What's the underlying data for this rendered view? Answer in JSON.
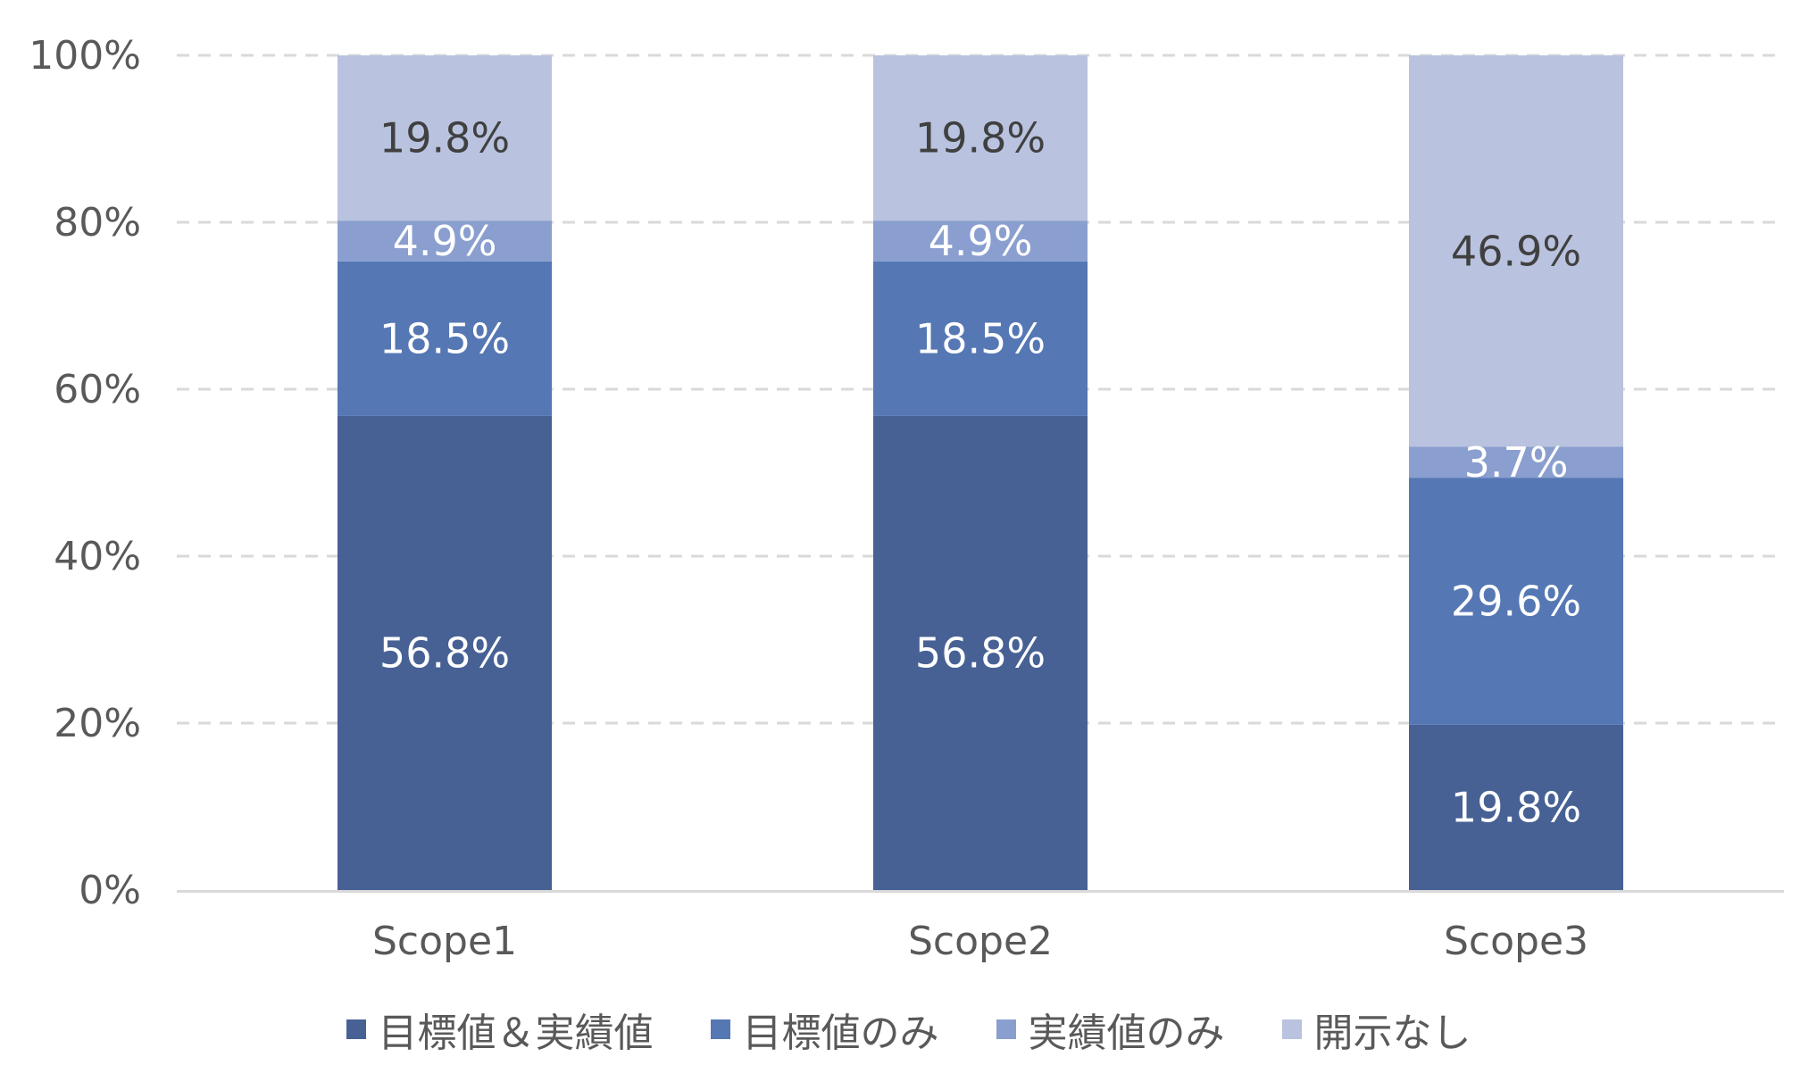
{
  "chart_data": {
    "type": "bar",
    "stacked": true,
    "percent_stacked": true,
    "categories": [
      "Scope1",
      "Scope2",
      "Scope3"
    ],
    "series": [
      {
        "name": "目標値＆実績値",
        "values": [
          56.8,
          56.8,
          19.8
        ],
        "labels": [
          "56.8%",
          "56.8%",
          "19.8%"
        ],
        "color": "#476195",
        "label_color": "#ffffff"
      },
      {
        "name": "目標値のみ",
        "values": [
          18.5,
          18.5,
          29.6
        ],
        "labels": [
          "18.5%",
          "18.5%",
          "29.6%"
        ],
        "color": "#5577b4",
        "label_color": "#ffffff"
      },
      {
        "name": "実績値のみ",
        "values": [
          4.9,
          4.9,
          3.7
        ],
        "labels": [
          "4.9%",
          "4.9%",
          "3.7%"
        ],
        "color": "#8a9fcf",
        "label_color": "#ffffff"
      },
      {
        "name": "開示なし",
        "values": [
          19.8,
          19.8,
          46.9
        ],
        "labels": [
          "19.8%",
          "19.8%",
          "46.9%"
        ],
        "color": "#b9c3df",
        "label_color": "#404040"
      }
    ],
    "y_ticks": [
      "0%",
      "20%",
      "40%",
      "60%",
      "80%",
      "100%"
    ],
    "ylim": [
      0,
      100
    ],
    "grid": true,
    "legend_position": "bottom",
    "axis_color": "#d9d9d9",
    "grid_color": "#d9d9d9"
  }
}
